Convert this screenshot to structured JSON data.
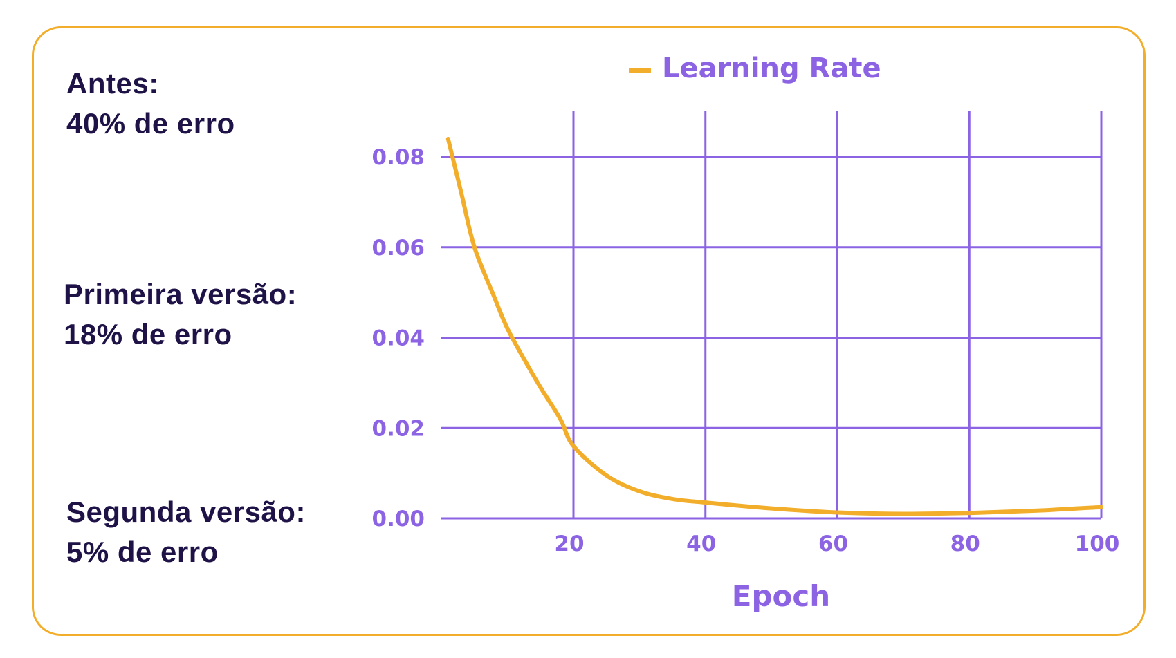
{
  "colors": {
    "border": "#F2AE2A",
    "line": "#F2AE2A",
    "grid": "#8B63E3",
    "axis_text": "#8B63E3",
    "stat_text": "#1E1247"
  },
  "stats": [
    {
      "label": "Antes:",
      "value": "40% de erro"
    },
    {
      "label": "Primeira versão:",
      "value": "18% de erro"
    },
    {
      "label": "Segunda versão:",
      "value": "5% de erro"
    }
  ],
  "chart_data": {
    "type": "line",
    "title": "",
    "xlabel": "Epoch",
    "ylabel": "",
    "legend": {
      "position": "top-center",
      "entries": [
        "Learning Rate"
      ]
    },
    "grid": true,
    "xlim": [
      0,
      100
    ],
    "ylim": [
      0,
      0.09
    ],
    "x_ticks": [
      20,
      40,
      60,
      80,
      100
    ],
    "x_tick_labels": [
      "20",
      "40",
      "60",
      "80",
      "100"
    ],
    "y_ticks": [
      0.0,
      0.02,
      0.04,
      0.06,
      0.08
    ],
    "y_tick_labels": [
      "0.00",
      "0.02",
      "0.04",
      "0.06",
      "0.08"
    ],
    "series": [
      {
        "name": "Learning Rate",
        "color": "#F2AE2A",
        "x": [
          1,
          3,
          5,
          8,
          10,
          13,
          15,
          18,
          20,
          25,
          30,
          35,
          40,
          50,
          60,
          70,
          80,
          90,
          100
        ],
        "y": [
          0.084,
          0.072,
          0.06,
          0.049,
          0.042,
          0.034,
          0.029,
          0.022,
          0.016,
          0.0095,
          0.006,
          0.0043,
          0.0035,
          0.0022,
          0.0013,
          0.001,
          0.0012,
          0.0017,
          0.0025
        ]
      }
    ]
  }
}
